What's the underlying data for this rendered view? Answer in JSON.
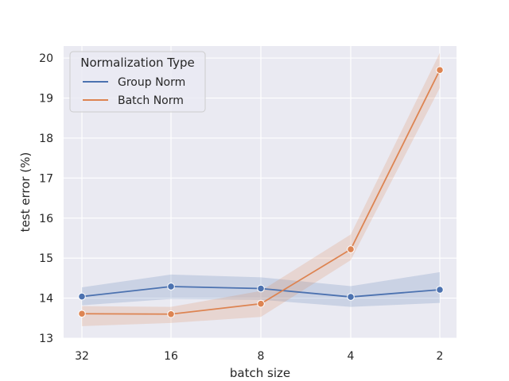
{
  "chart_data": {
    "type": "line",
    "xlabel": "batch size",
    "ylabel": "test error (%)",
    "categories": [
      "32",
      "16",
      "8",
      "4",
      "2"
    ],
    "ylim": [
      13,
      20.3
    ],
    "yticks": [
      13,
      14,
      15,
      16,
      17,
      18,
      19,
      20
    ],
    "grid": true,
    "legend": {
      "title": "Normalization Type",
      "placement": "top-left"
    },
    "series": [
      {
        "name": "Group Norm",
        "color": "#4c72b0",
        "values": [
          14.04,
          14.29,
          14.24,
          14.03,
          14.21
        ],
        "ci_low": [
          13.82,
          13.98,
          13.96,
          13.78,
          13.88
        ],
        "ci_high": [
          14.27,
          14.59,
          14.52,
          14.3,
          14.65
        ]
      },
      {
        "name": "Batch Norm",
        "color": "#dd8452",
        "values": [
          13.61,
          13.6,
          13.86,
          15.22,
          19.7
        ],
        "ci_low": [
          13.3,
          13.38,
          13.53,
          14.95,
          19.25
        ],
        "ci_high": [
          13.8,
          13.78,
          14.18,
          15.59,
          20.13
        ]
      }
    ]
  }
}
